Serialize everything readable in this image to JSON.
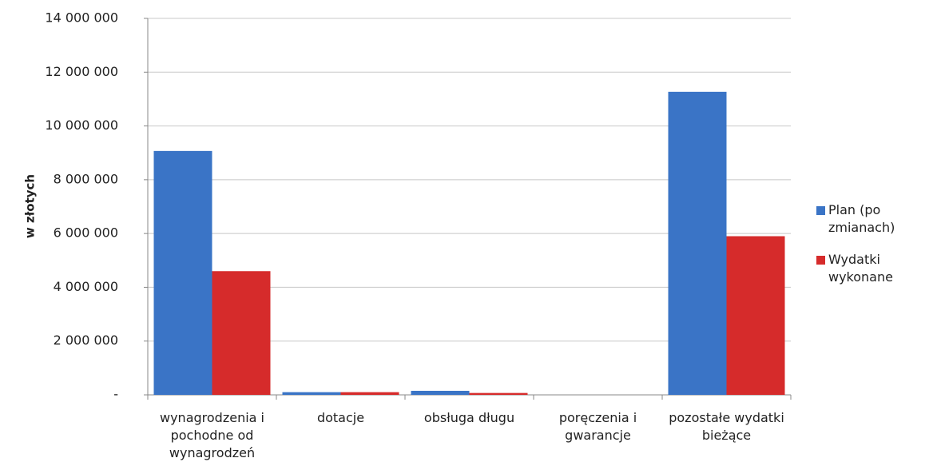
{
  "chart_data": {
    "type": "bar",
    "y_label": "w złotych",
    "categories": [
      "wynagrodzenia i pochodne od wynagrodzeń",
      "dotacje",
      "obsługa długu",
      "poręczenia i gwarancje",
      "pozostałe wydatki bieżące"
    ],
    "series": [
      {
        "name": "Plan (po zmianach)",
        "color": "#3a74c6",
        "values": [
          9070000,
          100000,
          150000,
          0,
          11270000
        ]
      },
      {
        "name": "Wydatki wykonane",
        "color": "#d62b2b",
        "values": [
          4600000,
          100000,
          70000,
          0,
          5900000
        ]
      }
    ],
    "ylim": [
      0,
      14000000
    ],
    "yticks": [
      {
        "value": 0,
        "label": "-"
      },
      {
        "value": 2000000,
        "label": "2 000 000"
      },
      {
        "value": 4000000,
        "label": "4 000 000"
      },
      {
        "value": 6000000,
        "label": "6 000 000"
      },
      {
        "value": 8000000,
        "label": "8 000 000"
      },
      {
        "value": 10000000,
        "label": "10 000 000"
      },
      {
        "value": 12000000,
        "label": "12 000 000"
      },
      {
        "value": 14000000,
        "label": "14 000 000"
      }
    ],
    "grid": true,
    "legend": "right"
  }
}
